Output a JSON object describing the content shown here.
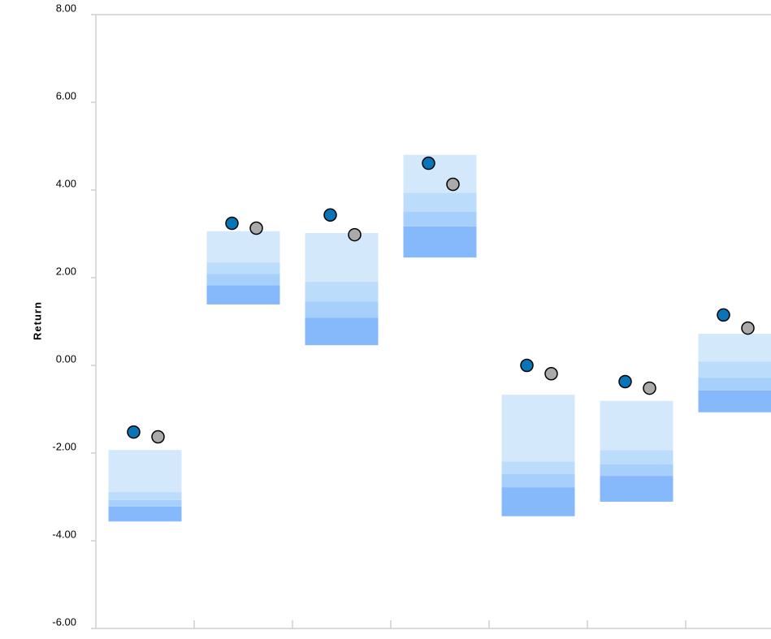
{
  "chart_data": {
    "type": "floating-stacked-bar",
    "y_label": "Return",
    "categories": [
      null,
      null,
      null,
      null,
      null,
      null,
      null
    ],
    "bar_base": [
      -3.56,
      1.39,
      0.46,
      2.46,
      -3.44,
      -3.11,
      -1.07
    ],
    "series": [
      {
        "color": "#86b8fc",
        "values": [
          0.34,
          0.44,
          0.63,
          0.71,
          0.66,
          0.59,
          0.5
        ]
      },
      {
        "color": "#a6cffc",
        "values": [
          0.15,
          0.26,
          0.37,
          0.33,
          0.3,
          0.26,
          0.29
        ]
      },
      {
        "color": "#bcdcfc",
        "values": [
          0.18,
          0.26,
          0.45,
          0.44,
          0.29,
          0.33,
          0.37
        ]
      },
      {
        "color": "#d4e8fc",
        "values": [
          0.96,
          0.71,
          1.11,
          0.86,
          1.52,
          1.12,
          0.63
        ]
      }
    ],
    "points": [
      {
        "color": "#0a74b8",
        "values": [
          -1.52,
          3.24,
          3.43,
          4.61,
          0.0,
          -0.37,
          1.15
        ]
      },
      {
        "color": "#aaaaaa",
        "values": [
          -1.63,
          3.13,
          2.98,
          4.13,
          -0.19,
          -0.52,
          0.85
        ]
      }
    ],
    "ylim": [
      -6,
      8
    ],
    "yticks": [
      {
        "value": -6,
        "label": "-6.00"
      },
      {
        "value": -4,
        "label": "-4.00"
      },
      {
        "value": -2,
        "label": "-2.00"
      },
      {
        "value": 0,
        "label": "0.00"
      },
      {
        "value": 2,
        "label": "2.00"
      },
      {
        "value": 4,
        "label": "4.00"
      },
      {
        "value": 6,
        "label": "6.00"
      },
      {
        "value": 8,
        "label": "8.00"
      }
    ]
  }
}
